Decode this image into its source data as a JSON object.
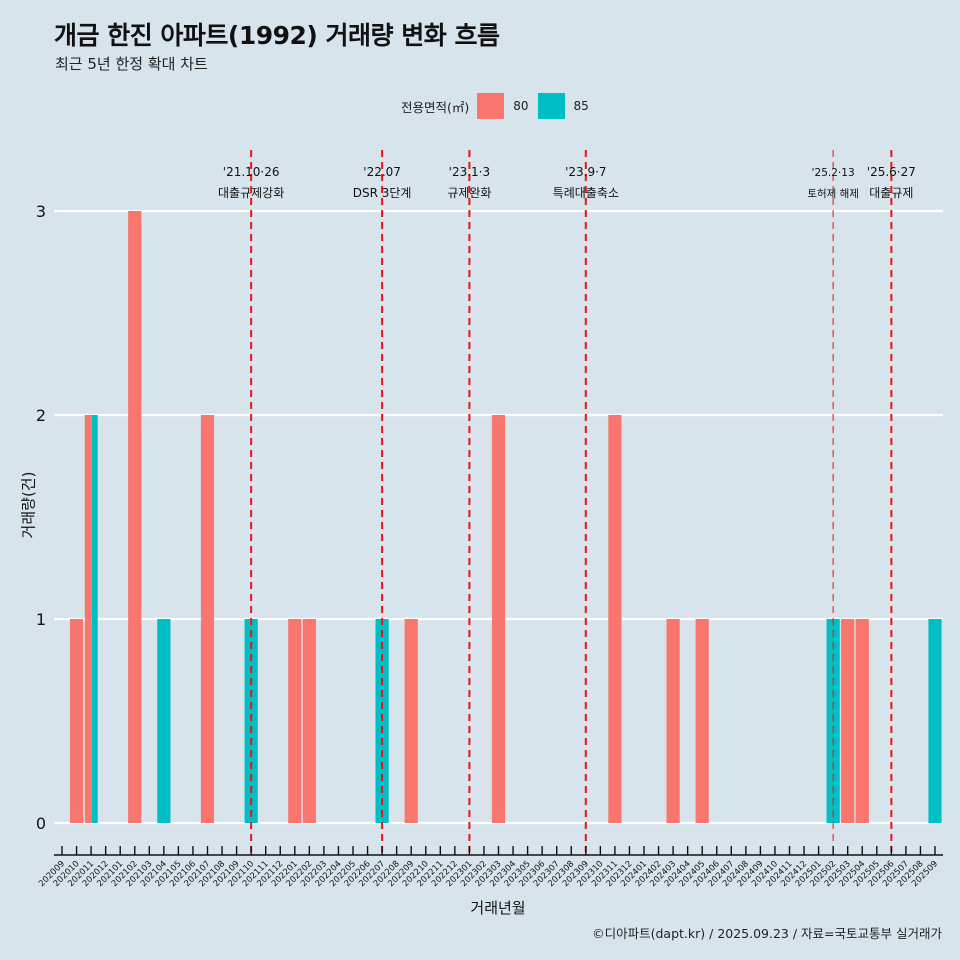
{
  "header": {
    "title": "개금 한진 아파트(1992) 거래량 변화 흐름",
    "subtitle": "최근 5년 한정 확대 차트"
  },
  "legend": {
    "title": "전용면적(㎡)",
    "items": [
      {
        "label": "80",
        "color": "#f8766d"
      },
      {
        "label": "85",
        "color": "#00bfc4"
      }
    ]
  },
  "caption": "©디아파트(dapt.kr) / 2025.09.23 / 자료=국토교통부 실거래가",
  "chart_data": {
    "type": "bar",
    "title": "개금 한진 아파트(1992) 거래량 변화 흐름",
    "subtitle": "최근 5년 한정 확대 차트",
    "xlabel": "거래년월",
    "ylabel": "거래량(건)",
    "ylim": [
      0,
      3
    ],
    "yticks": [
      0,
      1,
      2,
      3
    ],
    "grid": "horizontal major",
    "legend_position": "top",
    "categories": [
      "202009",
      "202010",
      "202011",
      "202012",
      "202101",
      "202102",
      "202103",
      "202104",
      "202105",
      "202106",
      "202107",
      "202108",
      "202109",
      "202110",
      "202111",
      "202112",
      "202201",
      "202202",
      "202203",
      "202204",
      "202205",
      "202206",
      "202207",
      "202208",
      "202209",
      "202210",
      "202211",
      "202212",
      "202301",
      "202302",
      "202303",
      "202304",
      "202305",
      "202306",
      "202307",
      "202308",
      "202309",
      "202310",
      "202311",
      "202312",
      "202401",
      "202402",
      "202403",
      "202404",
      "202405",
      "202406",
      "202407",
      "202408",
      "202409",
      "202410",
      "202411",
      "202412",
      "202501",
      "202502",
      "202503",
      "202504",
      "202505",
      "202506",
      "202507",
      "202508",
      "202509"
    ],
    "series": [
      {
        "name": "80",
        "color": "#f8766d",
        "points": [
          {
            "x": "202010",
            "y": 1
          },
          {
            "x": "202011",
            "y": 2
          },
          {
            "x": "202102",
            "y": 3
          },
          {
            "x": "202107",
            "y": 2
          },
          {
            "x": "202201",
            "y": 1
          },
          {
            "x": "202202",
            "y": 1
          },
          {
            "x": "202209",
            "y": 1
          },
          {
            "x": "202303",
            "y": 2
          },
          {
            "x": "202311",
            "y": 2
          },
          {
            "x": "202403",
            "y": 1
          },
          {
            "x": "202405",
            "y": 1
          },
          {
            "x": "202503",
            "y": 1
          },
          {
            "x": "202504",
            "y": 1
          }
        ]
      },
      {
        "name": "85",
        "color": "#00bfc4",
        "points": [
          {
            "x": "202011",
            "y": 2
          },
          {
            "x": "202104",
            "y": 1
          },
          {
            "x": "202110",
            "y": 1
          },
          {
            "x": "202207",
            "y": 1
          },
          {
            "x": "202502",
            "y": 1
          },
          {
            "x": "202509",
            "y": 1
          }
        ]
      }
    ],
    "annotations": [
      {
        "x": "202110",
        "date": "'21.10·26",
        "text": "대출규제강화",
        "minor": false
      },
      {
        "x": "202207",
        "date": "'22.07",
        "text": "DSR 3단계",
        "minor": false
      },
      {
        "x": "202301",
        "date": "'23.1·3",
        "text": "규제완화",
        "minor": false
      },
      {
        "x": "202309",
        "date": "'23.9·7",
        "text": "특례대출축소",
        "minor": false
      },
      {
        "x": "202502",
        "date": "'25.2·13",
        "text": "토허제 해제",
        "minor": true
      },
      {
        "x": "202506",
        "date": "'25.6·27",
        "text": "대출규제",
        "minor": false
      }
    ],
    "annotation_line_color": "#e8141c"
  }
}
